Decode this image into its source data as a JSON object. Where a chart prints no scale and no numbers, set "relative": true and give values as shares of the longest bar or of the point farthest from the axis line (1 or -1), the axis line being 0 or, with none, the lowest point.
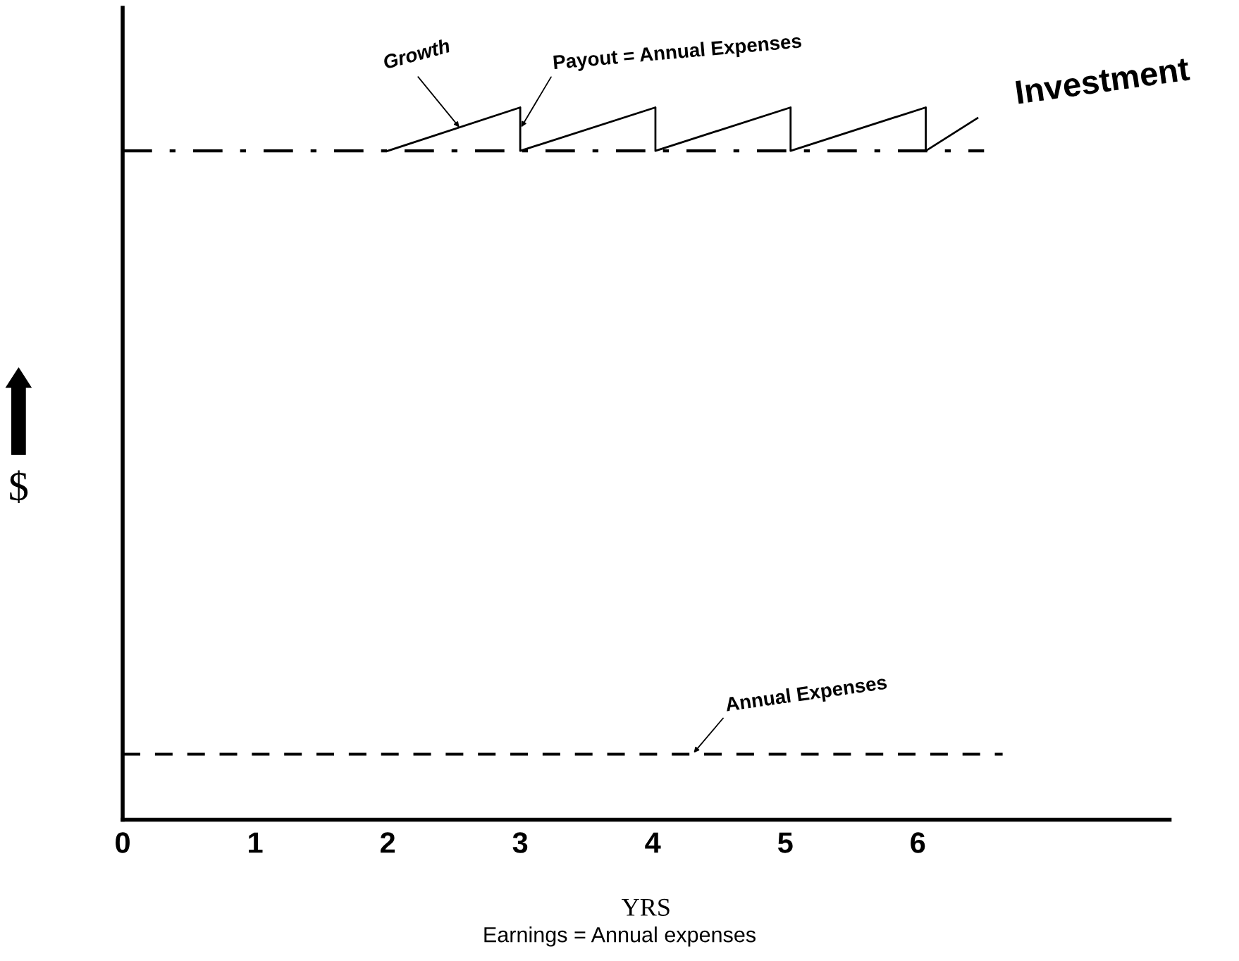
{
  "chart_data": {
    "type": "line",
    "relative": true,
    "xlabel": "YRS",
    "ylabel": "$",
    "xlim": [
      0,
      7.9
    ],
    "xticks": [
      0,
      1,
      2,
      3,
      4,
      5,
      6
    ],
    "grid": false,
    "marker": "none",
    "tick_labels": "x",
    "series": [
      {
        "name": "Investment",
        "color": "#000000",
        "line_style": "solid",
        "x": [
          2.0,
          3.0,
          3.0,
          4.02,
          4.02,
          5.04,
          5.04,
          6.06,
          6.06,
          6.45
        ],
        "values": [
          0.939,
          1,
          0.939,
          1,
          0.939,
          1,
          0.939,
          1,
          0.939,
          0.985
        ]
      },
      {
        "color": "#000000",
        "line_style": "dashdot",
        "x": [
          0,
          6.5
        ],
        "values": [
          0.939,
          0.939
        ]
      },
      {
        "color": "#000000",
        "line_style": "dashed",
        "x": [
          0,
          6.64
        ],
        "values": [
          0.092,
          0.092
        ]
      }
    ],
    "annotations": [
      {
        "text": "Growth",
        "x": 2.55,
        "y": 0.97
      },
      {
        "text": "Payout = Annual Expenses",
        "x": 3.0,
        "y": 0.97
      },
      {
        "text": "Annual Expenses",
        "x": 4.3,
        "y": 0.092
      },
      "Earnings = Annual expenses"
    ]
  }
}
